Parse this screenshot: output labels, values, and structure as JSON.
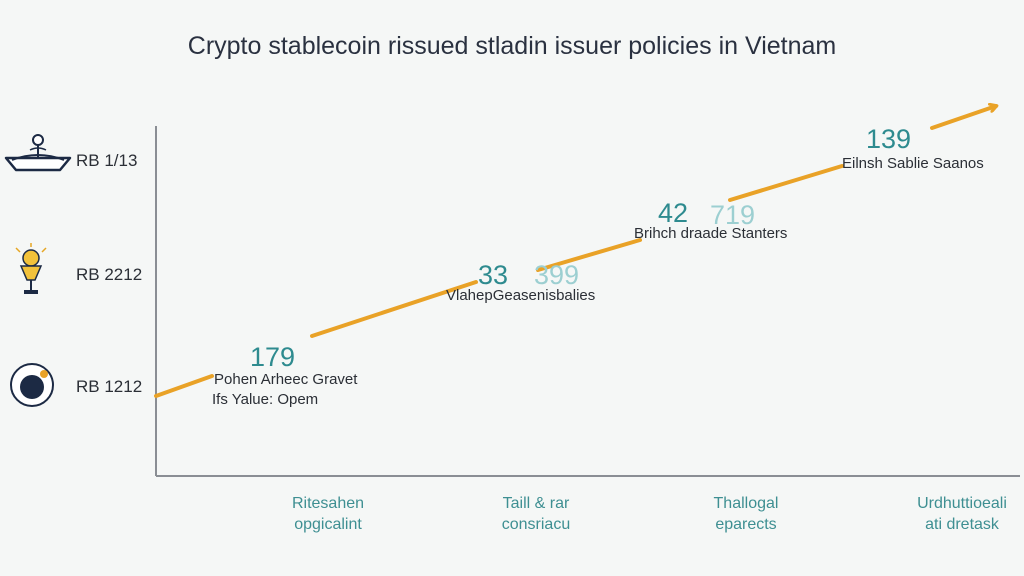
{
  "colors": {
    "background": "#f5f7f6",
    "line": "#e9a227",
    "axis": "#8a8e94",
    "value_text": "#2e8b8f",
    "value_text_faded": "#9ccfd1",
    "xtick_text": "#3e8f92",
    "title_text": "#2a3140"
  },
  "icons": [
    "boat-icon",
    "lamp-icon",
    "coin-icon"
  ],
  "chart_data": {
    "type": "line",
    "title": "Crypto stablecoin rissued stladin issuer policies in Vietnam",
    "xlabel": "",
    "ylabel": "",
    "grid": false,
    "legend": "none",
    "categories": [
      "Ritesahen\nopgicalint",
      "Taill & rar\nconsriacu",
      "Thallogal\neparects",
      "Urdhuttioeali\nati dretask"
    ],
    "yticks": [
      "RB 1/13",
      "RB 2212",
      "RB 1212"
    ],
    "series": [
      {
        "values": [
          179,
          33,
          42,
          139
        ]
      }
    ],
    "value_labels": [
      "179",
      "33",
      "42",
      "139"
    ],
    "faded_labels": [
      "",
      "399",
      "719",
      ""
    ],
    "annotations": [
      [
        "Pohen Arheec Gravet",
        "Ifs Yalue: Opem"
      ],
      [
        "VlahepGeasenisbalies"
      ],
      [
        "Brihch draade Stanters"
      ],
      [
        "Eilnsh Sablie Saanos"
      ]
    ]
  }
}
